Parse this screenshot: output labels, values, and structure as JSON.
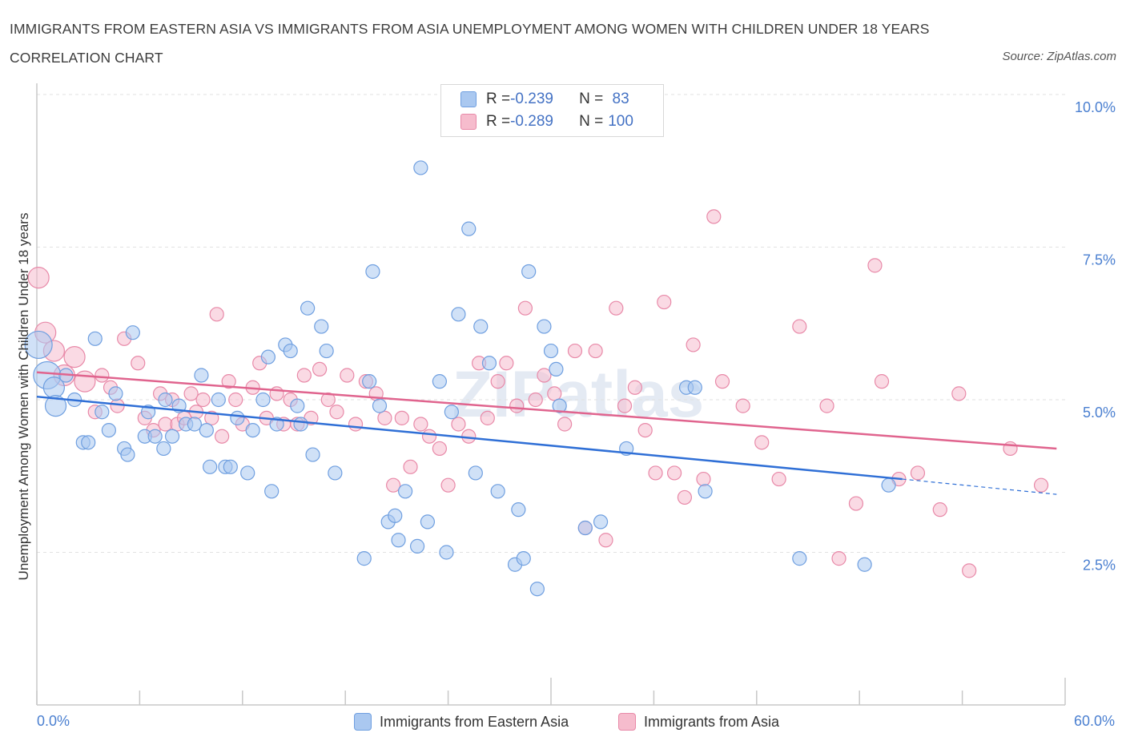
{
  "title": "IMMIGRANTS FROM EASTERN ASIA VS IMMIGRANTS FROM ASIA UNEMPLOYMENT AMONG WOMEN WITH CHILDREN UNDER 18 YEARS CORRELATION CHART",
  "source": "Source: ZipAtlas.com",
  "watermark": "ZIPatlas",
  "colors": {
    "blue_fill": "#aac8f0",
    "blue_stroke": "#6f9fe0",
    "blue_line": "#2f6fd6",
    "pink_fill": "#f6bccd",
    "pink_stroke": "#e889a8",
    "pink_line": "#e0648e",
    "axis_text": "#4a7fd0",
    "grid": "#e2e2e2"
  },
  "legend_box": {
    "row1": {
      "r_label": "R = ",
      "r_value": "-0.239",
      "n_label": "N = ",
      "n_value": " 83"
    },
    "row2": {
      "r_label": "R = ",
      "r_value": "-0.289",
      "n_label": "N = ",
      "n_value": "100"
    }
  },
  "legend_bottom": {
    "series1": "Immigrants from Eastern Asia",
    "series2": "Immigrants from Asia"
  },
  "chart_data": {
    "type": "scatter",
    "xlabel": "",
    "ylabel": "Unemployment Among Women with Children Under 18 years",
    "xlim": [
      0,
      60
    ],
    "ylim": [
      0,
      10
    ],
    "x_tick_labels": [
      "0.0%",
      "60.0%"
    ],
    "y_ticks": [
      2.5,
      5.0,
      7.5,
      10.0
    ],
    "y_tick_labels": [
      "2.5%",
      "5.0%",
      "7.5%",
      "10.0%"
    ],
    "grid": true,
    "series": [
      {
        "name": "Immigrants from Eastern Asia",
        "r": -0.239,
        "n": 83,
        "trend": {
          "x0": 0,
          "y0": 5.05,
          "x1": 50.5,
          "y1": 3.7,
          "dash_to_x": 59.5,
          "dash_to_y": 3.45
        },
        "points": [
          [
            0.1,
            5.9,
            3
          ],
          [
            0.6,
            5.4,
            3
          ],
          [
            1.0,
            5.2,
            2
          ],
          [
            1.1,
            4.9,
            2
          ],
          [
            1.7,
            5.4,
            1
          ],
          [
            2.2,
            5.0,
            1
          ],
          [
            3.4,
            6.0,
            1
          ],
          [
            2.7,
            4.3,
            1
          ],
          [
            3.0,
            4.3,
            1
          ],
          [
            3.8,
            4.8,
            1
          ],
          [
            4.2,
            4.5,
            1
          ],
          [
            4.6,
            5.1,
            1
          ],
          [
            5.1,
            4.2,
            1
          ],
          [
            5.3,
            4.1,
            1
          ],
          [
            5.6,
            6.1,
            1
          ],
          [
            6.3,
            4.4,
            1
          ],
          [
            6.5,
            4.8,
            1
          ],
          [
            6.9,
            4.4,
            1
          ],
          [
            7.5,
            5.0,
            1
          ],
          [
            7.4,
            4.2,
            1
          ],
          [
            7.9,
            4.4,
            1
          ],
          [
            8.3,
            4.9,
            1
          ],
          [
            8.7,
            4.6,
            1
          ],
          [
            9.2,
            4.6,
            1
          ],
          [
            9.6,
            5.4,
            1
          ],
          [
            9.9,
            4.5,
            1
          ],
          [
            10.1,
            3.9,
            1
          ],
          [
            10.6,
            5.0,
            1
          ],
          [
            11.0,
            3.9,
            1
          ],
          [
            11.3,
            3.9,
            1
          ],
          [
            11.7,
            4.7,
            1
          ],
          [
            12.3,
            3.8,
            1
          ],
          [
            12.6,
            4.5,
            1
          ],
          [
            13.2,
            5.0,
            1
          ],
          [
            13.5,
            5.7,
            1
          ],
          [
            13.7,
            3.5,
            1
          ],
          [
            14.0,
            4.6,
            1
          ],
          [
            14.5,
            5.9,
            1
          ],
          [
            14.8,
            5.8,
            1
          ],
          [
            15.2,
            4.9,
            1
          ],
          [
            15.4,
            4.6,
            1
          ],
          [
            15.8,
            6.5,
            1
          ],
          [
            16.1,
            4.1,
            1
          ],
          [
            16.6,
            6.2,
            1
          ],
          [
            16.9,
            5.8,
            1
          ],
          [
            17.4,
            3.8,
            1
          ],
          [
            19.1,
            2.4,
            1
          ],
          [
            19.4,
            5.3,
            1
          ],
          [
            19.6,
            7.1,
            1
          ],
          [
            20.0,
            4.9,
            1
          ],
          [
            20.5,
            3.0,
            1
          ],
          [
            20.9,
            3.1,
            1
          ],
          [
            21.1,
            2.7,
            1
          ],
          [
            21.5,
            3.5,
            1
          ],
          [
            22.2,
            2.6,
            1
          ],
          [
            22.4,
            8.8,
            1
          ],
          [
            22.8,
            3.0,
            1
          ],
          [
            23.5,
            5.3,
            1
          ],
          [
            23.9,
            2.5,
            1
          ],
          [
            24.2,
            4.8,
            1
          ],
          [
            24.6,
            6.4,
            1
          ],
          [
            25.2,
            7.8,
            1
          ],
          [
            25.6,
            3.8,
            1
          ],
          [
            25.9,
            6.2,
            1
          ],
          [
            26.4,
            5.6,
            1
          ],
          [
            26.9,
            3.5,
            1
          ],
          [
            27.9,
            2.3,
            1
          ],
          [
            28.1,
            3.2,
            1
          ],
          [
            28.4,
            2.4,
            1
          ],
          [
            28.7,
            7.1,
            1
          ],
          [
            29.2,
            1.9,
            1
          ],
          [
            29.6,
            6.2,
            1
          ],
          [
            30.0,
            5.8,
            1
          ],
          [
            30.3,
            5.5,
            1
          ],
          [
            30.5,
            4.9,
            1
          ],
          [
            32.0,
            2.9,
            1
          ],
          [
            32.9,
            3.0,
            1
          ],
          [
            34.4,
            4.2,
            1
          ],
          [
            37.9,
            5.2,
            1
          ],
          [
            38.4,
            5.2,
            1
          ],
          [
            39.0,
            3.5,
            1
          ],
          [
            44.5,
            2.4,
            1
          ],
          [
            48.3,
            2.3,
            1
          ],
          [
            49.7,
            3.6,
            1
          ]
        ]
      },
      {
        "name": "Immigrants from Asia",
        "r": -0.289,
        "n": 100,
        "trend": {
          "x0": 0,
          "y0": 5.45,
          "x1": 59.5,
          "y1": 4.2
        },
        "points": [
          [
            0.1,
            7.0,
            2
          ],
          [
            0.5,
            6.1,
            2
          ],
          [
            1.0,
            5.8,
            2
          ],
          [
            1.6,
            5.4,
            2
          ],
          [
            2.2,
            5.7,
            2
          ],
          [
            2.8,
            5.3,
            2
          ],
          [
            3.4,
            4.8,
            1
          ],
          [
            3.8,
            5.4,
            1
          ],
          [
            4.3,
            5.2,
            1
          ],
          [
            4.7,
            4.9,
            1
          ],
          [
            5.1,
            6.0,
            1
          ],
          [
            5.9,
            5.6,
            1
          ],
          [
            6.3,
            4.7,
            1
          ],
          [
            6.8,
            4.5,
            1
          ],
          [
            7.2,
            5.1,
            1
          ],
          [
            7.5,
            4.6,
            1
          ],
          [
            7.9,
            5.0,
            1
          ],
          [
            8.2,
            4.6,
            1
          ],
          [
            8.6,
            4.7,
            1
          ],
          [
            9.0,
            5.1,
            1
          ],
          [
            9.3,
            4.8,
            1
          ],
          [
            9.7,
            5.0,
            1
          ],
          [
            10.2,
            4.7,
            1
          ],
          [
            10.5,
            6.4,
            1
          ],
          [
            10.8,
            4.4,
            1
          ],
          [
            11.2,
            5.3,
            1
          ],
          [
            11.6,
            5.0,
            1
          ],
          [
            12.0,
            4.6,
            1
          ],
          [
            12.6,
            5.2,
            1
          ],
          [
            13.0,
            5.6,
            1
          ],
          [
            13.4,
            4.7,
            1
          ],
          [
            14.0,
            5.1,
            1
          ],
          [
            14.4,
            4.6,
            1
          ],
          [
            14.8,
            5.0,
            1
          ],
          [
            15.2,
            4.6,
            1
          ],
          [
            15.6,
            5.4,
            1
          ],
          [
            16.0,
            4.7,
            1
          ],
          [
            16.5,
            5.5,
            1
          ],
          [
            17.0,
            5.0,
            1
          ],
          [
            17.5,
            4.8,
            1
          ],
          [
            18.1,
            5.4,
            1
          ],
          [
            18.6,
            4.6,
            1
          ],
          [
            19.2,
            5.3,
            1
          ],
          [
            19.8,
            5.1,
            1
          ],
          [
            20.3,
            4.7,
            1
          ],
          [
            20.8,
            3.6,
            1
          ],
          [
            21.3,
            4.7,
            1
          ],
          [
            21.8,
            3.9,
            1
          ],
          [
            22.4,
            4.6,
            1
          ],
          [
            22.9,
            4.4,
            1
          ],
          [
            23.5,
            4.2,
            1
          ],
          [
            24.0,
            3.6,
            1
          ],
          [
            24.6,
            4.6,
            1
          ],
          [
            25.2,
            4.4,
            1
          ],
          [
            25.8,
            5.6,
            1
          ],
          [
            26.3,
            4.7,
            1
          ],
          [
            26.9,
            5.3,
            1
          ],
          [
            27.4,
            5.6,
            1
          ],
          [
            28.0,
            4.9,
            1
          ],
          [
            28.5,
            6.5,
            1
          ],
          [
            29.1,
            5.0,
            1
          ],
          [
            29.6,
            5.4,
            1
          ],
          [
            30.2,
            5.1,
            1
          ],
          [
            30.8,
            4.6,
            1
          ],
          [
            31.4,
            5.8,
            1
          ],
          [
            32.0,
            2.9,
            1
          ],
          [
            32.6,
            5.8,
            1
          ],
          [
            33.2,
            2.7,
            1
          ],
          [
            33.8,
            6.5,
            1
          ],
          [
            34.3,
            4.9,
            1
          ],
          [
            34.9,
            5.2,
            1
          ],
          [
            35.5,
            4.5,
            1
          ],
          [
            36.1,
            3.8,
            1
          ],
          [
            36.6,
            6.6,
            1
          ],
          [
            37.2,
            3.8,
            1
          ],
          [
            37.8,
            3.4,
            1
          ],
          [
            38.3,
            5.9,
            1
          ],
          [
            38.9,
            3.7,
            1
          ],
          [
            39.5,
            8.0,
            1
          ],
          [
            40.0,
            5.3,
            1
          ],
          [
            41.2,
            4.9,
            1
          ],
          [
            42.3,
            4.3,
            1
          ],
          [
            43.3,
            3.7,
            1
          ],
          [
            44.5,
            6.2,
            1
          ],
          [
            46.1,
            4.9,
            1
          ],
          [
            46.8,
            2.4,
            1
          ],
          [
            47.8,
            3.3,
            1
          ],
          [
            48.9,
            7.2,
            1
          ],
          [
            49.3,
            5.3,
            1
          ],
          [
            50.3,
            3.7,
            1
          ],
          [
            51.4,
            3.8,
            1
          ],
          [
            52.7,
            3.2,
            1
          ],
          [
            53.8,
            5.1,
            1
          ],
          [
            54.4,
            2.2,
            1
          ],
          [
            56.8,
            4.2,
            1
          ],
          [
            58.6,
            3.6,
            1
          ]
        ]
      }
    ]
  }
}
